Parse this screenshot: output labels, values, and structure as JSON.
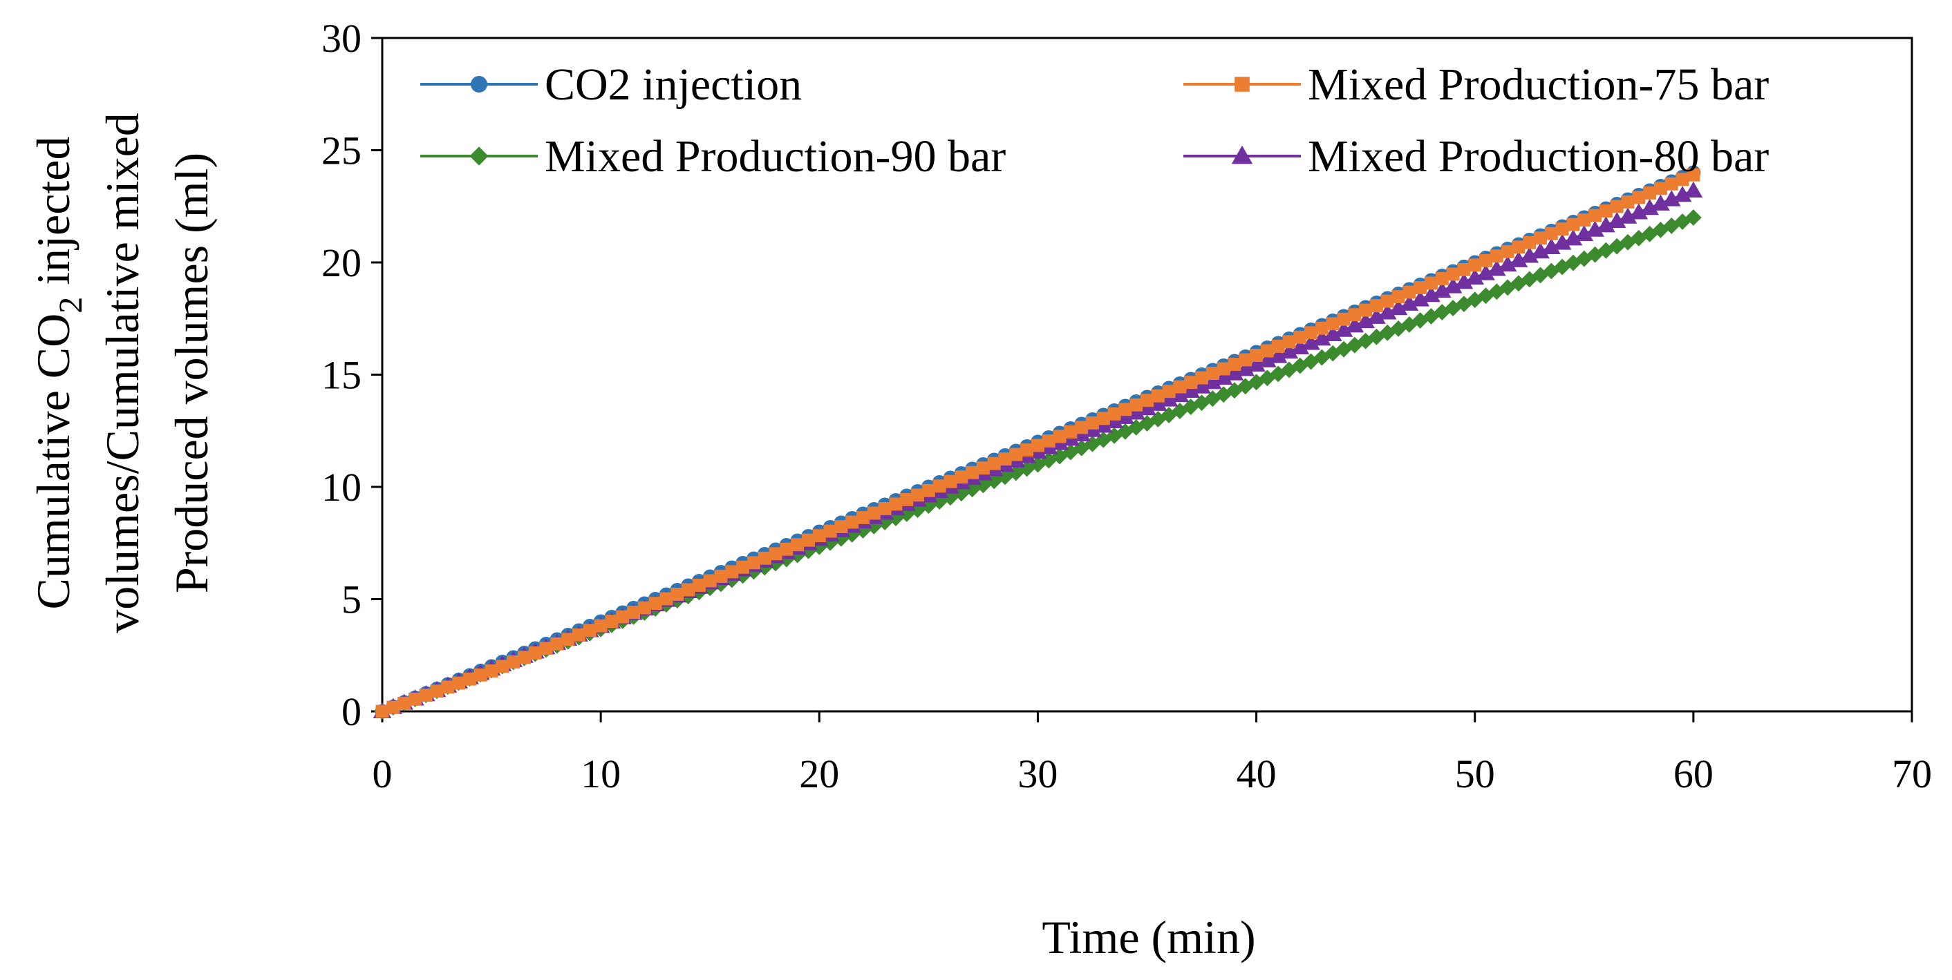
{
  "chart_data": {
    "type": "line",
    "title": "",
    "xlabel": "Time (min)",
    "ylabel": {
      "line1_prefix": "Cumulative CO",
      "line1_subscript": "2",
      "line1_suffix": " injected",
      "line2": "volumes/Cumulative mixed",
      "line3": "Produced volumes (ml)"
    },
    "xlim": [
      0,
      70
    ],
    "ylim": [
      0,
      30
    ],
    "x_ticks": [
      0,
      10,
      20,
      30,
      40,
      50,
      60,
      70
    ],
    "y_ticks": [
      0,
      5,
      10,
      15,
      20,
      25,
      30
    ],
    "grid": false,
    "legend_position": "top",
    "x_range": {
      "start": 0,
      "end": 60,
      "step": 0.5
    },
    "series": [
      {
        "name": "CO2 injection",
        "color": "#2E75B6",
        "marker": "circle",
        "points": [
          [
            0,
            0
          ],
          [
            60,
            24
          ]
        ]
      },
      {
        "name": "Mixed Production-75 bar",
        "color": "#ED7D31",
        "marker": "square",
        "points": [
          [
            0,
            0
          ],
          [
            5,
            1.8
          ],
          [
            60,
            23.9
          ]
        ]
      },
      {
        "name": "Mixed Production-90 bar",
        "color": "#3C8A2E",
        "marker": "diamond",
        "points": [
          [
            0,
            0
          ],
          [
            60,
            22
          ]
        ]
      },
      {
        "name": "Mixed Production-80 bar",
        "color": "#7030A0",
        "marker": "triangle",
        "points": [
          [
            0,
            0
          ],
          [
            10,
            3.8
          ],
          [
            60,
            23.2
          ]
        ]
      }
    ]
  }
}
